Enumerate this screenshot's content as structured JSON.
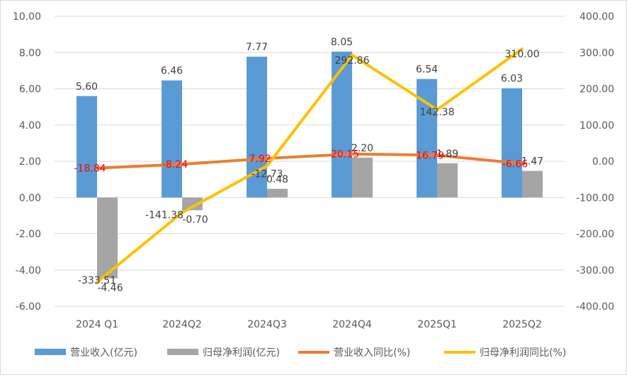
{
  "chart_data": {
    "type": "bar",
    "categories": [
      "2024 Q1",
      "2024Q2",
      "2024Q3",
      "2024Q4",
      "2025Q1",
      "2025Q2"
    ],
    "left_axis": {
      "ylim": [
        -6,
        10
      ],
      "ticks": [
        "-6.00",
        "-4.00",
        "-2.00",
        "0.00",
        "2.00",
        "4.00",
        "6.00",
        "8.00",
        "10.00"
      ]
    },
    "right_axis": {
      "ylim": [
        -400,
        400
      ],
      "ticks": [
        "-400.00",
        "-300.00",
        "-200.00",
        "-100.00",
        "0.00",
        "100.00",
        "200.00",
        "300.00",
        "400.00"
      ]
    },
    "series": [
      {
        "name": "营业收入(亿元)",
        "type": "bar",
        "axis": "left",
        "color": "#5b9bd5",
        "values": [
          5.6,
          6.46,
          7.77,
          8.05,
          6.54,
          6.03
        ],
        "labels": [
          "5.60",
          "6.46",
          "7.77",
          "8.05",
          "6.54",
          "6.03"
        ]
      },
      {
        "name": "归母净利润(亿元)",
        "type": "bar",
        "axis": "left",
        "color": "#a5a5a5",
        "values": [
          -4.46,
          -0.7,
          0.48,
          2.2,
          1.89,
          1.47
        ],
        "labels": [
          "-4.46",
          "-0.70",
          "0.48",
          "2.20",
          "1.89",
          "1.47"
        ]
      },
      {
        "name": "营业收入同比(%)",
        "type": "line",
        "axis": "right",
        "color": "#ed7d31",
        "label_color": "#ff0000",
        "values": [
          -18.84,
          -8.24,
          7.92,
          20.15,
          16.79,
          -6.66
        ],
        "labels": [
          "-18.84",
          "-8.24",
          "7.92",
          "20.15",
          "16.79",
          "-6.66"
        ]
      },
      {
        "name": "归母净利润同比(%)",
        "type": "line",
        "axis": "right",
        "color": "#ffc000",
        "label_color": "#404040",
        "values": [
          -333.51,
          -141.38,
          -12.73,
          292.86,
          142.38,
          310.0
        ],
        "labels": [
          "-333.51",
          "-141.38",
          "-12.73",
          "292.86",
          "142.38",
          "310.00"
        ]
      }
    ],
    "legend_position": "bottom",
    "grid": true
  }
}
